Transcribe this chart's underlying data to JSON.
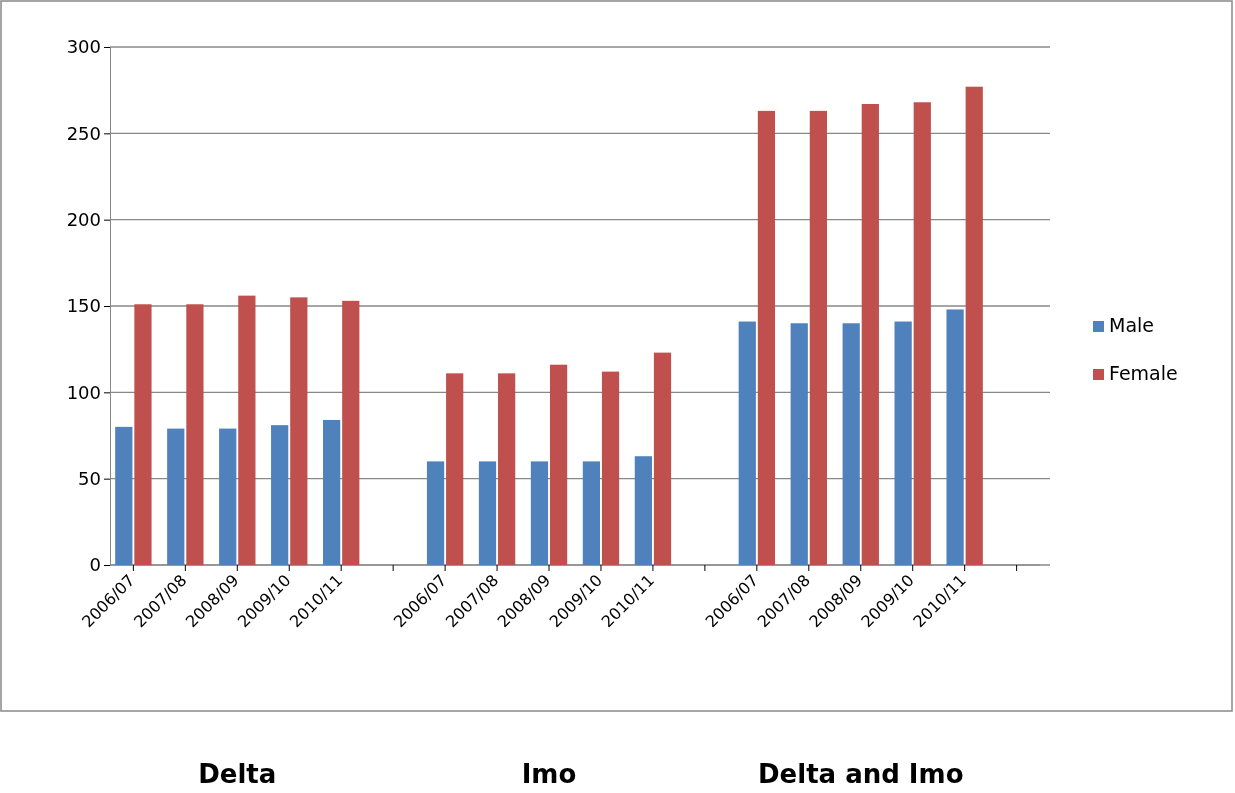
{
  "chart_data": {
    "type": "bar",
    "categories": [
      "2006/07",
      "2007/08",
      "2008/09",
      "2009/10",
      "2010/11",
      null,
      "2006/07",
      "2007/08",
      "2008/09",
      "2009/10",
      "2010/11",
      null,
      "2006/07",
      "2007/08",
      "2008/09",
      "2009/10",
      "2010/11",
      null
    ],
    "series": [
      {
        "name": "Male",
        "color": "#4f81bd",
        "values": [
          80,
          79,
          79,
          81,
          84,
          null,
          60,
          60,
          60,
          60,
          63,
          null,
          141,
          140,
          140,
          141,
          148,
          null
        ]
      },
      {
        "name": "Female",
        "color": "#c0504d",
        "values": [
          151,
          151,
          156,
          155,
          153,
          null,
          111,
          111,
          116,
          112,
          123,
          null,
          263,
          263,
          267,
          268,
          277,
          null
        ]
      }
    ],
    "ylim": [
      0,
      300
    ],
    "yticks": [
      0,
      50,
      100,
      150,
      200,
      250,
      300
    ],
    "grid": "y",
    "legend": "right",
    "annotations": [
      "Delta",
      "Imo",
      "Delta and Imo"
    ]
  }
}
